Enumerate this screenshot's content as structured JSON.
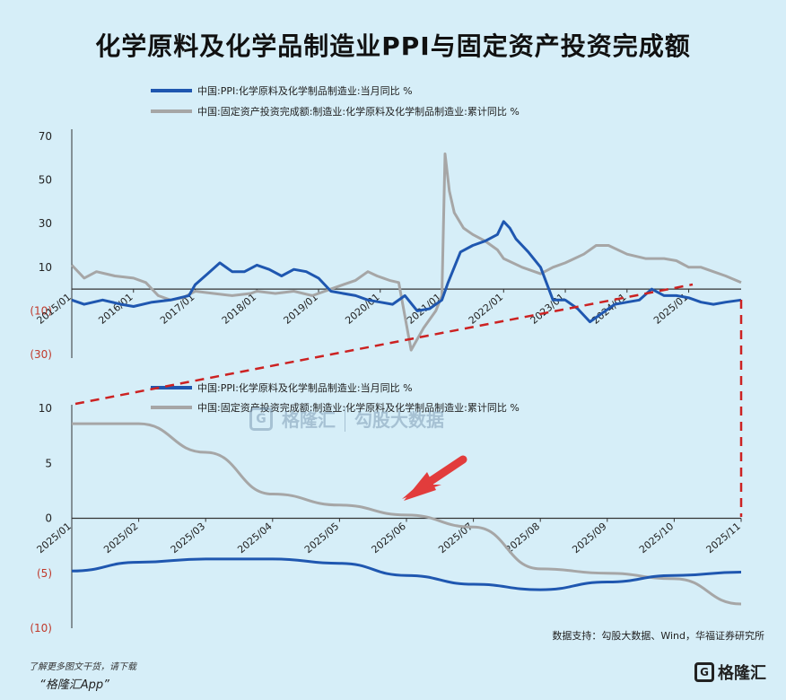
{
  "title": "化学原料及化学品制造业PPI与固定资产投资完成额",
  "legend": {
    "ppi": "中国:PPI:化学原料及化学制品制造业:当月同比 %",
    "fai": "中国:固定资产投资完成额:制造业:化学原料及化学制品制造业:累计同比 %"
  },
  "colors": {
    "ppi": "#1f57b0",
    "fai": "#a6a6a6",
    "dashed": "#cc2222",
    "arrow": "#e23c3c"
  },
  "source": "数据支持：勾股大数据、Wind，华福证券研究所",
  "footer": {
    "note": "了解更多图文干货，请下载",
    "app": "“格隆汇App”"
  },
  "logo": {
    "mark": "G",
    "name": "格隆汇"
  },
  "watermark": {
    "left": "格隆汇",
    "right": "勾股大数据"
  },
  "chart_data": [
    {
      "type": "line",
      "title": "",
      "x_tick_labels": [
        "2015/01",
        "2016/01",
        "2017/01",
        "2018/01",
        "2019/01",
        "2020/01",
        "2021/01",
        "2022/01",
        "2023/01",
        "2024/01",
        "2025/01"
      ],
      "x_tick_pos": [
        2015.0,
        2016.0,
        2017.0,
        2018.0,
        2019.0,
        2020.0,
        2021.0,
        2022.0,
        2023.0,
        2024.0,
        2025.0
      ],
      "xlim": [
        2015.0,
        2025.85
      ],
      "ylim": [
        -30,
        70
      ],
      "y_ticks": [
        70,
        50,
        30,
        10,
        -10,
        -30
      ],
      "y_tick_labels": [
        "70",
        "50",
        "30",
        "10",
        "(10)",
        "(30)"
      ],
      "zero_line": 0,
      "series": [
        {
          "name": "中国:PPI:化学原料及化学制品制造业:当月同比 %",
          "key": "ppi",
          "x": [
            2015.0,
            2015.2,
            2015.5,
            2015.8,
            2016.0,
            2016.3,
            2016.6,
            2016.9,
            2017.0,
            2017.2,
            2017.4,
            2017.6,
            2017.8,
            2018.0,
            2018.2,
            2018.4,
            2018.6,
            2018.8,
            2019.0,
            2019.2,
            2019.4,
            2019.6,
            2019.8,
            2020.0,
            2020.2,
            2020.4,
            2020.6,
            2020.8,
            2021.0,
            2021.1,
            2021.3,
            2021.5,
            2021.7,
            2021.9,
            2022.0,
            2022.1,
            2022.2,
            2022.3,
            2022.4,
            2022.6,
            2022.8,
            2023.0,
            2023.2,
            2023.4,
            2023.6,
            2023.8,
            2024.0,
            2024.2,
            2024.4,
            2024.6,
            2024.8,
            2025.0,
            2025.2,
            2025.4,
            2025.6,
            2025.85
          ],
          "y": [
            -5,
            -7,
            -5,
            -7,
            -8,
            -6,
            -5,
            -3,
            2,
            7,
            12,
            8,
            8,
            11,
            9,
            6,
            9,
            8,
            5,
            -1,
            -2,
            -3,
            -5,
            -6,
            -7,
            -3,
            -10,
            -9,
            -5,
            3,
            17,
            20,
            22,
            25,
            31,
            28,
            23,
            20,
            17,
            10,
            -5,
            -5,
            -9,
            -15,
            -11,
            -7,
            -6,
            -5,
            0,
            -3,
            -3,
            -4,
            -6,
            -7,
            -6,
            -5
          ]
        },
        {
          "name": "中国:固定资产投资完成额:制造业:化学原料及化学制品制造业:累计同比 %",
          "key": "fai",
          "x": [
            2015.0,
            2015.2,
            2015.4,
            2015.7,
            2016.0,
            2016.2,
            2016.4,
            2016.6,
            2016.8,
            2017.0,
            2017.3,
            2017.6,
            2017.9,
            2018.0,
            2018.3,
            2018.6,
            2018.9,
            2019.0,
            2019.2,
            2019.4,
            2019.6,
            2019.8,
            2019.95,
            2020.05,
            2020.15,
            2020.3,
            2020.5,
            2020.7,
            2020.9,
            2021.0,
            2021.05,
            2021.12,
            2021.2,
            2021.35,
            2021.5,
            2021.7,
            2021.9,
            2022.0,
            2022.3,
            2022.6,
            2022.8,
            2023.0,
            2023.3,
            2023.5,
            2023.7,
            2024.0,
            2024.3,
            2024.6,
            2024.8,
            2025.0,
            2025.2,
            2025.4,
            2025.6,
            2025.85
          ],
          "y": [
            11,
            5,
            8,
            6,
            5,
            3,
            -3,
            -5,
            -4,
            -1,
            -2,
            -3,
            -2,
            -1,
            -2,
            -1,
            -3,
            -2,
            0,
            2,
            4,
            8,
            6,
            5,
            4,
            3,
            -28,
            -18,
            -10,
            -3,
            62,
            45,
            35,
            28,
            25,
            22,
            18,
            14,
            10,
            7,
            10,
            12,
            16,
            20,
            20,
            16,
            14,
            14,
            13,
            10,
            10,
            8,
            6,
            3
          ]
        }
      ]
    },
    {
      "type": "line",
      "title": "",
      "categories": [
        "2025/01",
        "2025/02",
        "2025/03",
        "2025/04",
        "2025/05",
        "2025/06",
        "2025/07",
        "2025/08",
        "2025/09",
        "2025/10",
        "2025/11"
      ],
      "ylim": [
        -10,
        10
      ],
      "y_ticks": [
        10,
        5,
        0,
        -5,
        -10
      ],
      "y_tick_labels": [
        "10",
        "5",
        "0",
        "(5)",
        "(10)"
      ],
      "series": [
        {
          "name": "中国:PPI:化学原料及化学制品制造业:当月同比 %",
          "key": "ppi",
          "values": [
            -4.8,
            -4.0,
            -3.7,
            -3.7,
            -4.1,
            -5.2,
            -6.0,
            -6.5,
            -5.8,
            -5.2,
            -4.9
          ]
        },
        {
          "name": "中国:固定资产投资完成额:制造业:化学原料及化学制品制造业:累计同比 %",
          "key": "fai",
          "values": [
            8.6,
            8.6,
            6.0,
            2.2,
            1.2,
            0.3,
            -0.8,
            -4.6,
            -5.0,
            -5.5,
            -7.8
          ]
        }
      ]
    }
  ]
}
